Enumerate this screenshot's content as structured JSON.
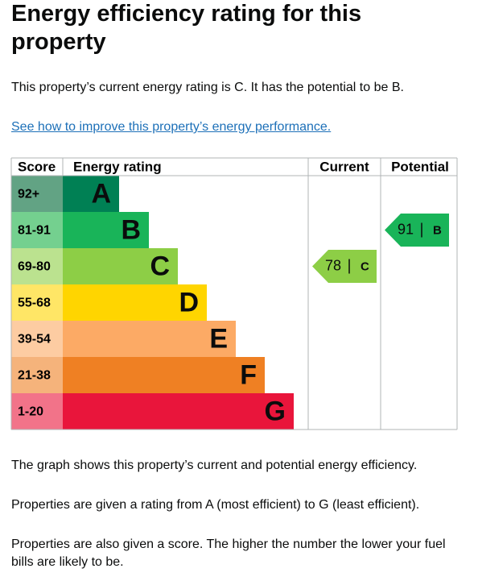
{
  "header": {
    "title": "Energy efficiency rating for this property"
  },
  "intro": "This property’s current energy rating is C. It has the potential to be B.",
  "link": "See how to improve this property’s energy performance.",
  "chart": {
    "headers": {
      "score": "Score",
      "rating": "Energy rating",
      "current": "Current",
      "potential": "Potential"
    },
    "rows": [
      {
        "score": "92+",
        "rating": "A",
        "color": "#008054",
        "score_color": "#62a384"
      },
      {
        "score": "81-91",
        "rating": "B",
        "color": "#19b459",
        "score_color": "#74d08f"
      },
      {
        "score": "69-80",
        "rating": "C",
        "color": "#8dce46",
        "score_color": "#bbe28f"
      },
      {
        "score": "55-68",
        "rating": "D",
        "color": "#ffd500",
        "score_color": "#ffe666"
      },
      {
        "score": "39-54",
        "rating": "E",
        "color": "#fcaa65",
        "score_color": "#fdcca2"
      },
      {
        "score": "21-38",
        "rating": "F",
        "color": "#ef8023",
        "score_color": "#f5b37b"
      },
      {
        "score": "1-20",
        "rating": "G",
        "color": "#e9153b",
        "score_color": "#f27389"
      }
    ],
    "current": {
      "score": 78,
      "rating": "C"
    },
    "potential": {
      "score": 91,
      "rating": "B"
    }
  },
  "paragraphs": [
    "The graph shows this property’s current and potential energy efficiency.",
    "Properties are given a rating from A (most efficient) to G (least efficient).",
    "Properties are also given a score. The higher the number the lower your fuel bills are likely to be."
  ]
}
